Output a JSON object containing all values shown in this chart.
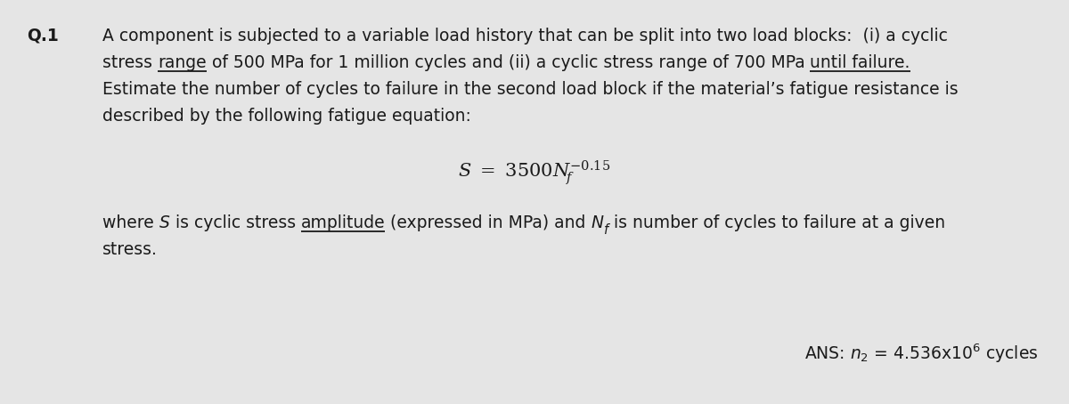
{
  "background_color": "#e5e5e5",
  "fig_width": 12.0,
  "fig_height": 4.54,
  "dpi": 100,
  "text_color": "#1a1a1a",
  "body_fontsize": 13.5,
  "q_label": "Q.1",
  "q_label_fontsize": 13.5,
  "line1": "A component is subjected to a variable load history that can be split into two load blocks:  (i) a cyclic",
  "line2_seg1": "stress ",
  "line2_seg2": "range",
  "line2_seg3": " of 500 MPa for 1 million cycles and (ii) a cyclic stress range of 700 MPa ",
  "line2_seg4": "until failure.",
  "line3": "Estimate the number of cycles to failure in the second load block if the material’s fatigue resistance is",
  "line4": "described by the following fatigue equation:",
  "where_seg1": "where ",
  "where_seg2": "S",
  "where_seg3": " is cyclic stress ",
  "where_seg4": "amplitude",
  "where_seg5": " (expressed in MPa) and ",
  "where_seg6": "N",
  "where_seg6b": "f",
  "where_seg7": " is number of cycles to failure at a given",
  "stress_line": "stress.",
  "ans_text": "ANS: ",
  "ans_n2": "n",
  "ans_n2_sub": "2",
  "ans_rest": " = 4.536x10",
  "ans_sup": "6",
  "ans_end": " cycles"
}
